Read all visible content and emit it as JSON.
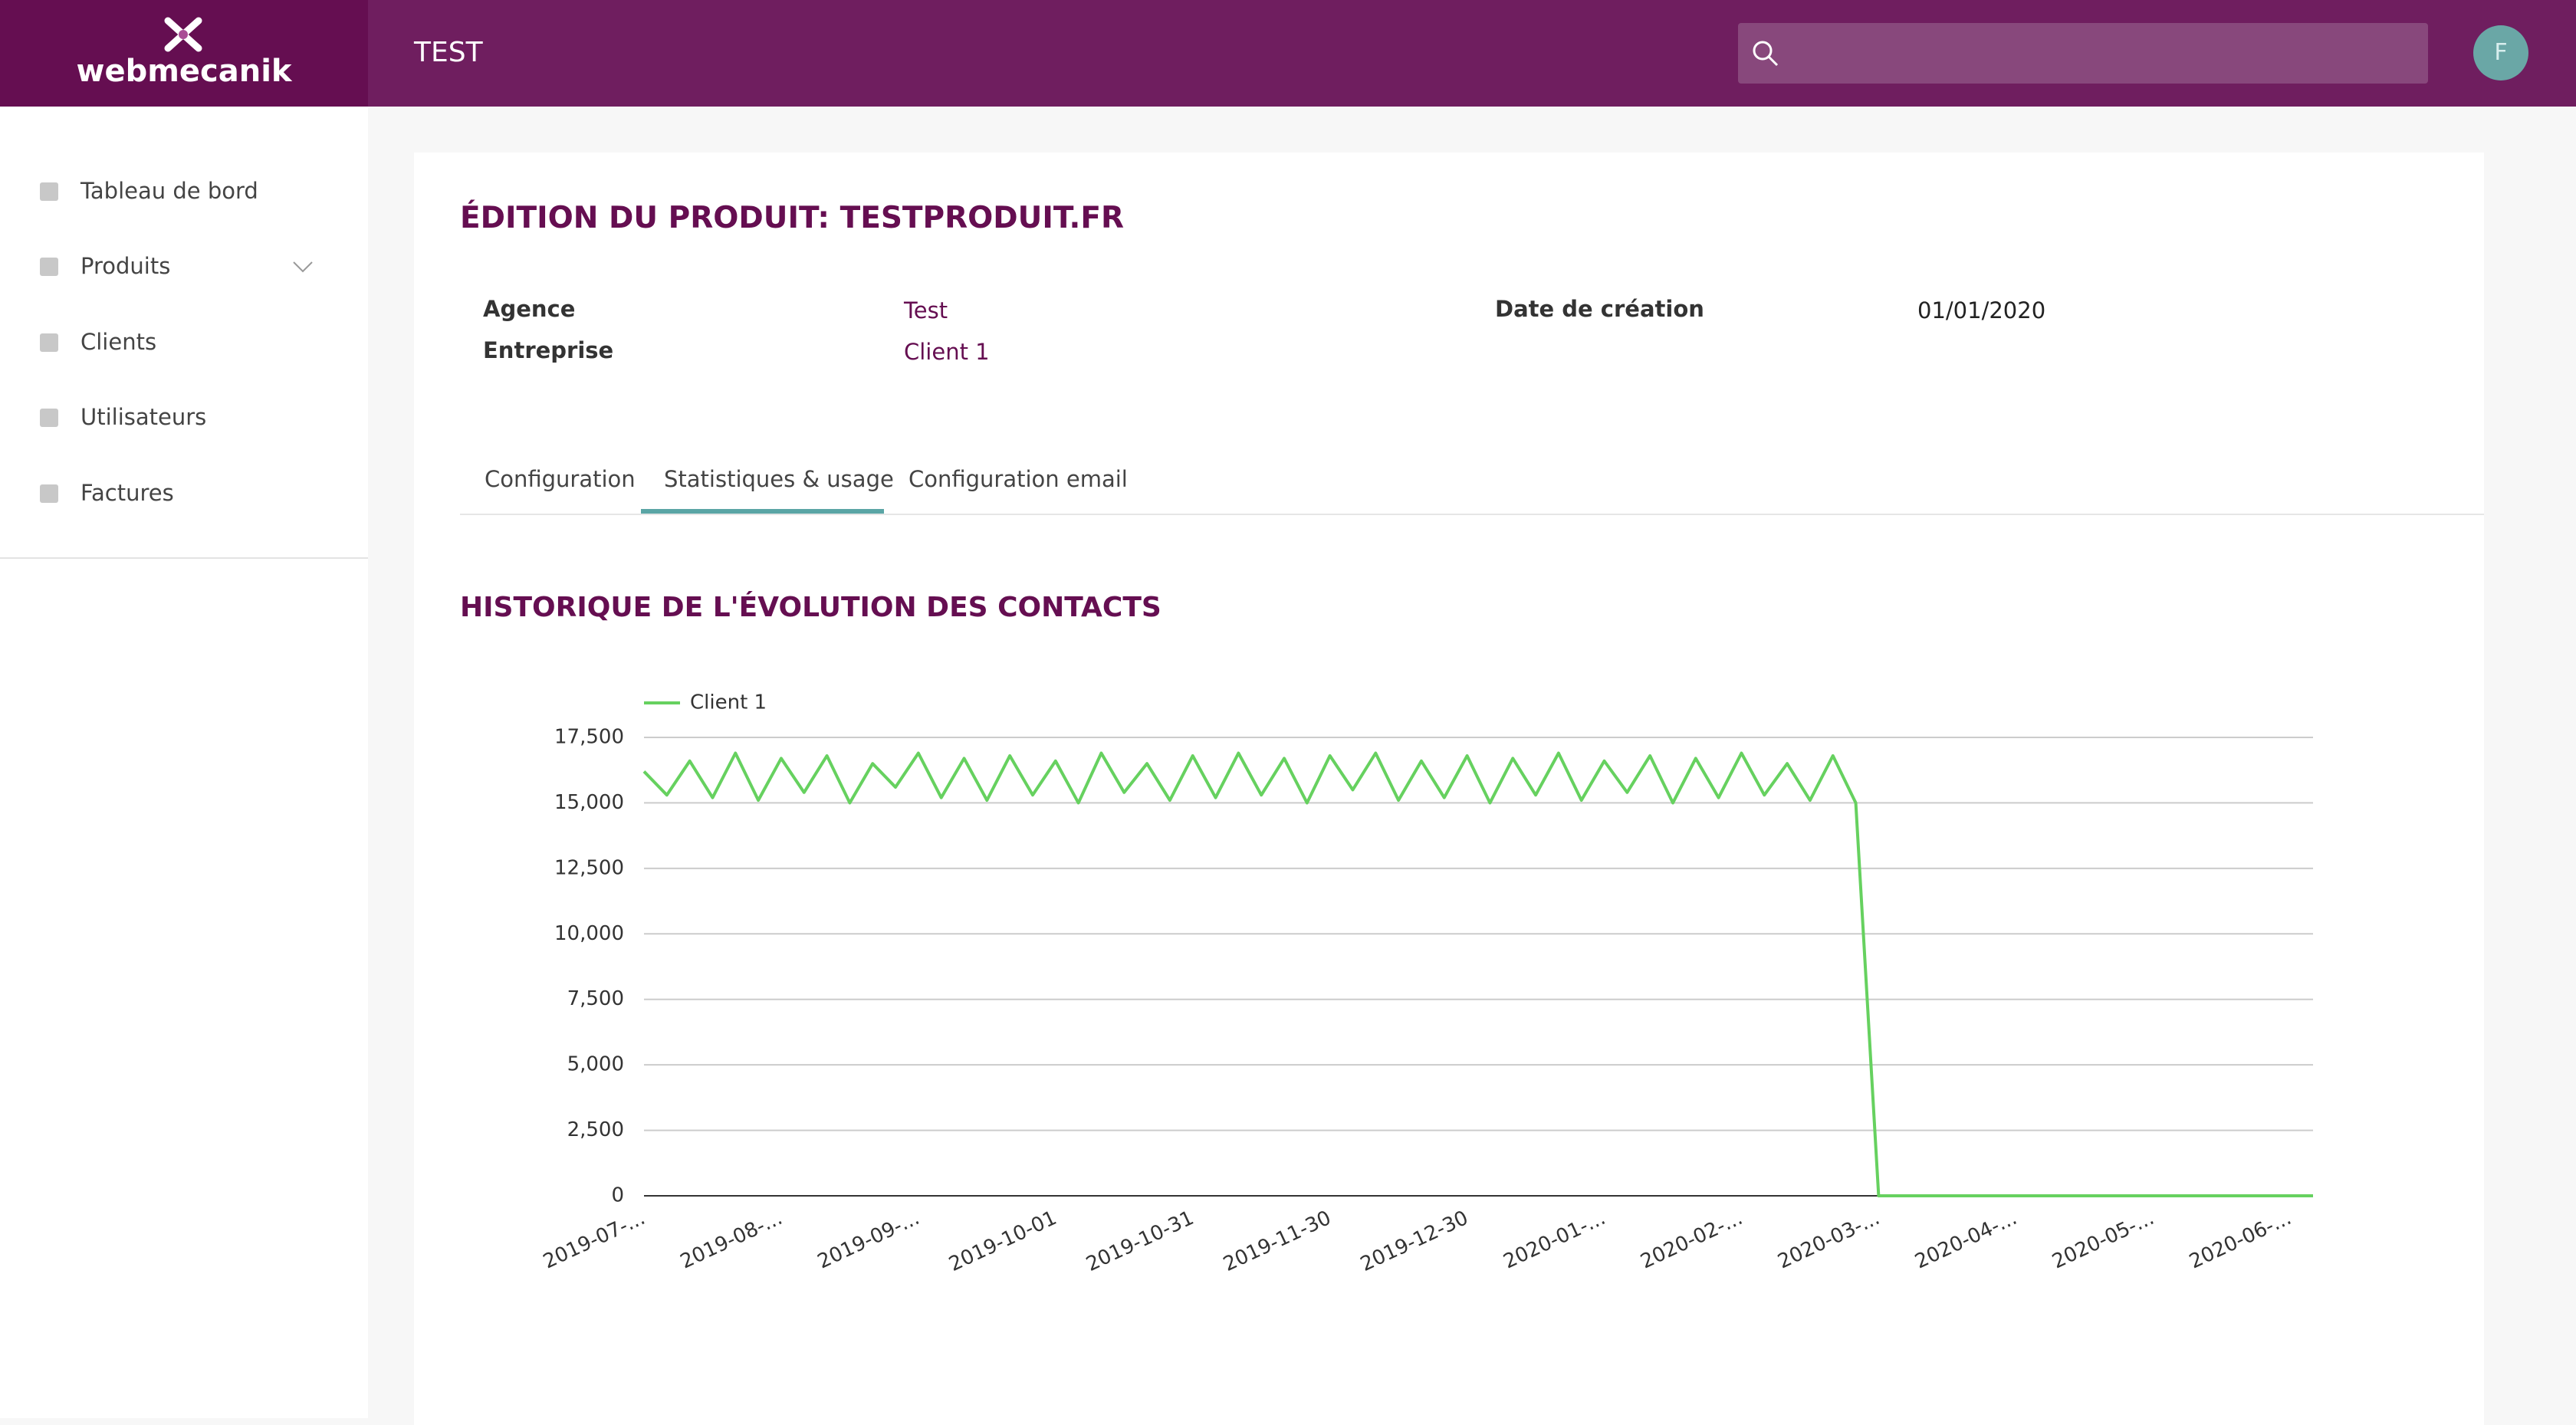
{
  "header": {
    "logo": "webmecanik",
    "section": "TEST",
    "avatar": "F"
  },
  "sidebar": {
    "items": [
      "Tableau de bord",
      "Produits",
      "Clients",
      "Utilisateurs",
      "Factures"
    ]
  },
  "product": {
    "title": "ÉDITION DU PRODUIT: TESTPRODUIT.FR",
    "fields": [
      {
        "label": "Agence",
        "value": "Test"
      },
      {
        "label": "Entreprise",
        "value": "Client 1"
      },
      {
        "label": "Date de création",
        "value": "01/01/2020"
      }
    ]
  },
  "tabs": [
    "Configuration",
    "Statistiques & usage",
    "Configuration email"
  ],
  "chart_data": {
    "type": "line",
    "title": "HISTORIQUE DE L'ÉVOLUTION DES CONTACTS",
    "categories": [
      "2019-07-...",
      null,
      null,
      null,
      null,
      null,
      "2019-08-...",
      null,
      null,
      null,
      null,
      null,
      "2019-09-...",
      null,
      null,
      null,
      null,
      null,
      "2019-10-01",
      null,
      null,
      null,
      null,
      null,
      "2019-10-31",
      null,
      null,
      null,
      null,
      null,
      "2019-11-30",
      null,
      null,
      null,
      null,
      null,
      "2019-12-30",
      null,
      null,
      null,
      null,
      null,
      "2020-01-...",
      null,
      null,
      null,
      null,
      null,
      "2020-02-...",
      null,
      null,
      null,
      null,
      null,
      "2020-03-...",
      null,
      null,
      null,
      null,
      null,
      "2020-04-...",
      null,
      null,
      null,
      null,
      null,
      "2020-05-...",
      null,
      null,
      null,
      null,
      null,
      "2020-06-...",
      null
    ],
    "series": [
      {
        "name": "Client 1",
        "color": "#66d15f",
        "values": [
          16200,
          15300,
          16600,
          15200,
          16900,
          15100,
          16700,
          15400,
          16800,
          15000,
          16500,
          15600,
          16900,
          15200,
          16700,
          15100,
          16800,
          15300,
          16600,
          15000,
          16900,
          15400,
          16500,
          15100,
          16800,
          15200,
          16900,
          15300,
          16700,
          15000,
          16800,
          15500,
          16900,
          15100,
          16600,
          15200,
          16800,
          15000,
          16700,
          15300,
          16900,
          15100,
          16600,
          15400,
          16800,
          15000,
          16700,
          15200,
          16900,
          15300,
          16500,
          15100,
          16800,
          15000,
          0,
          0,
          0,
          0,
          0,
          0,
          0,
          0,
          0,
          0,
          0,
          0,
          0,
          0,
          0,
          0,
          0,
          0,
          0,
          0
        ]
      }
    ],
    "ylim": [
      0,
      17500
    ],
    "yticks": [
      0,
      {
        "value": 2500,
        "label": "2,500"
      },
      {
        "value": 5000,
        "label": "5,000"
      },
      {
        "value": 7500,
        "label": "7,500"
      },
      {
        "value": 10000,
        "label": "10,000"
      },
      {
        "value": 12500,
        "label": "12,500"
      },
      {
        "value": 15000,
        "label": "15,000"
      },
      {
        "value": 17500,
        "label": "17,500"
      }
    ],
    "grid": true,
    "legend": "top-left"
  }
}
